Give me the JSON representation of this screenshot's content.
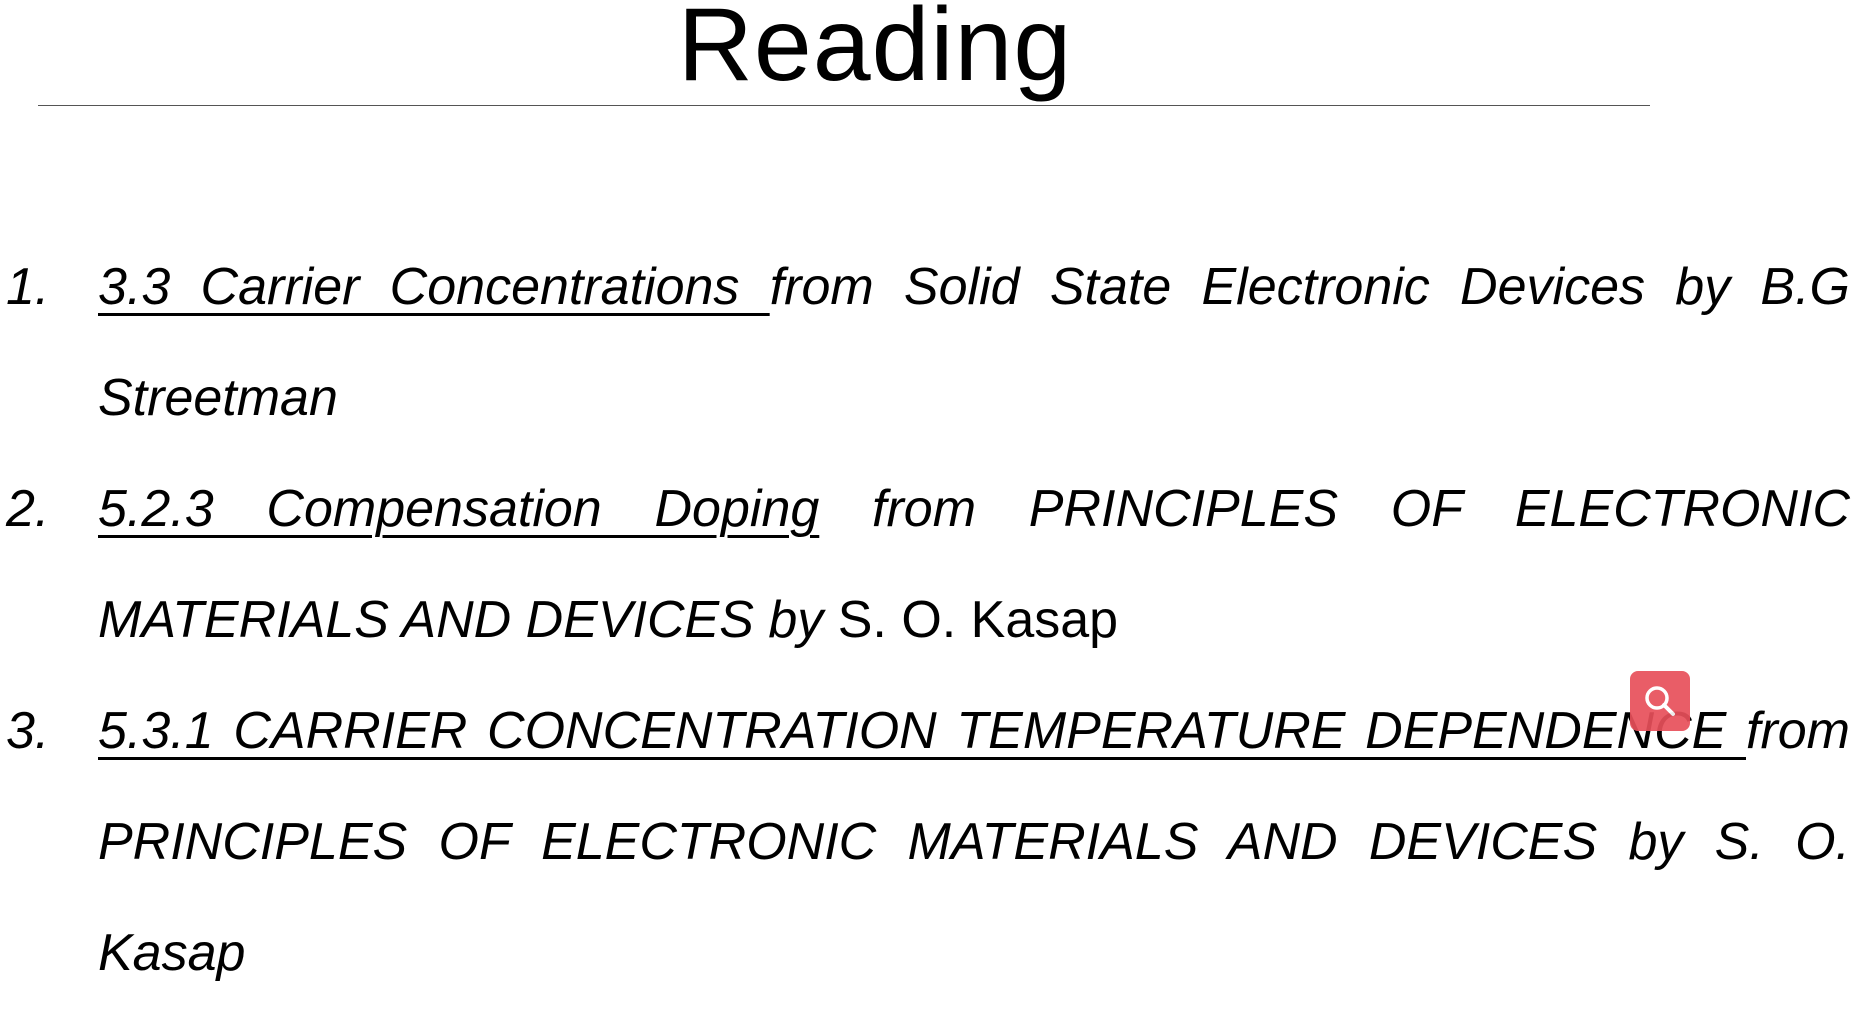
{
  "slide": {
    "title": "Reading"
  },
  "readings": [
    {
      "number": "1.",
      "link_text": "3.3 Carrier Concentrations ",
      "rest_italic": "from Solid State Electronic Devices by B.G Streetman",
      "rest_upright": ""
    },
    {
      "number": "2.",
      "link_text": "5.2.3 Compensation Doping",
      "rest_italic": " from PRINCIPLES OF ELECTRONIC MATERIALS AND DEVICES by ",
      "rest_upright": "S. O. Kasap"
    },
    {
      "number": "3.",
      "link_text": "5.3.1 CARRIER CONCENTRATION TEMPERATURE DEPENDENCE ",
      "rest_italic": "from PRINCIPLES OF ELECTRONIC MATERIALS AND DEVICES by S. O. Kasap",
      "rest_upright": ""
    }
  ],
  "overlay": {
    "icon": "search-icon",
    "color": "#e8505b"
  }
}
